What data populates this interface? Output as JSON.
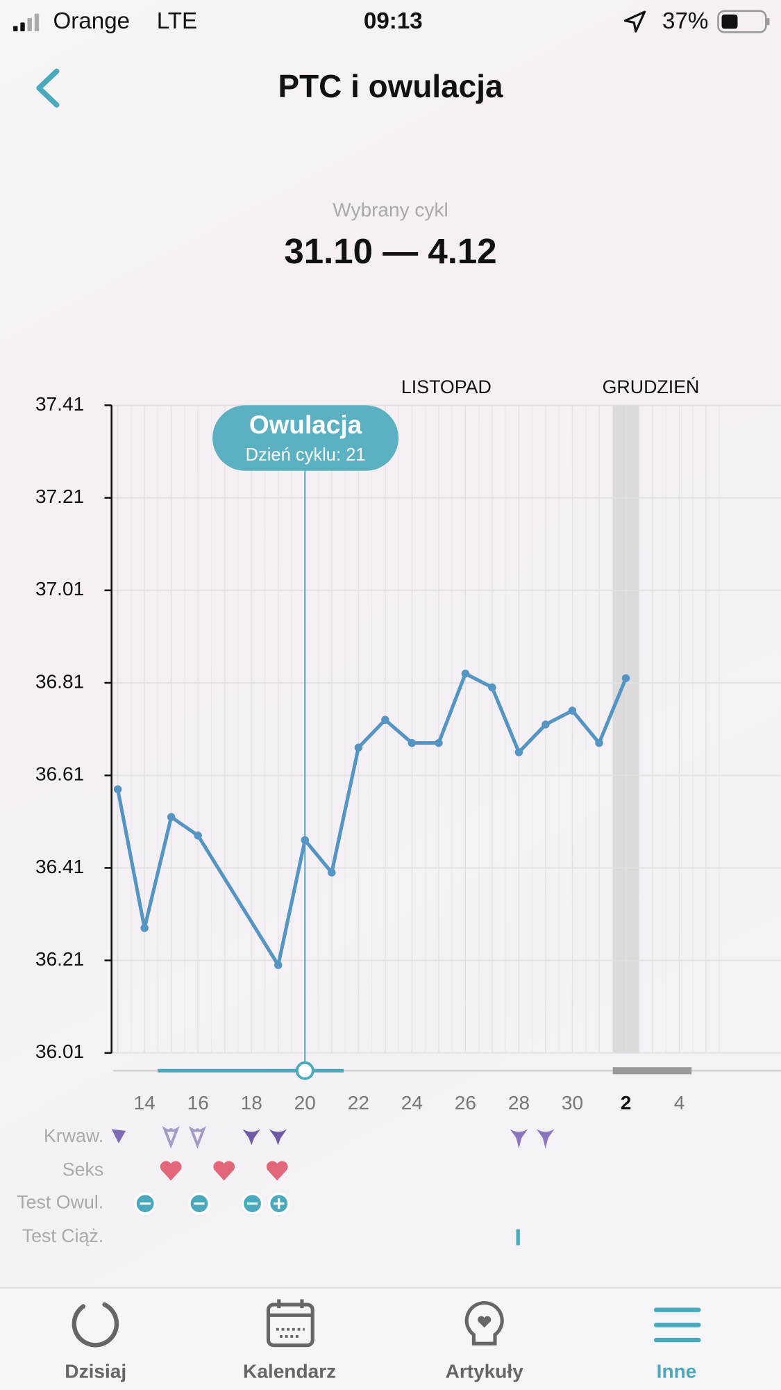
{
  "status_bar": {
    "carrier": "Orange",
    "network": "LTE",
    "time": "09:13",
    "battery": "37%"
  },
  "header": {
    "title": "PTC i owulacja"
  },
  "cycle": {
    "label": "Wybrany cykl",
    "range": "31.10 — 4.12"
  },
  "chart_data": {
    "type": "line",
    "categories": [
      null,
      "14",
      null,
      "16",
      null,
      "18",
      null,
      "20",
      null,
      "22",
      null,
      "24",
      null,
      "26",
      null,
      "28",
      null,
      "30",
      null,
      "2",
      null,
      "4",
      null
    ],
    "highlight_category": "2",
    "months": [
      "LISTOPAD",
      "GRUDZIEŃ"
    ],
    "series": [
      {
        "name": "PTC",
        "color": "#5595c4",
        "values": [
          36.58,
          36.28,
          36.52,
          36.48,
          null,
          null,
          36.2,
          36.47,
          36.4,
          36.67,
          36.73,
          36.68,
          36.68,
          36.83,
          36.8,
          36.66,
          36.72,
          36.75,
          36.68,
          36.82,
          null,
          null,
          null
        ]
      }
    ],
    "ylim": [
      36.01,
      37.41
    ],
    "yticks": [
      36.01,
      36.21,
      36.41,
      36.61,
      36.81,
      37.01,
      37.21,
      37.41
    ],
    "grid": true,
    "annotation": {
      "title": "Owulacja",
      "subtitle": "Dzień cyklu: 21"
    }
  },
  "rows": [
    "Krwaw.",
    "Seks",
    "Test Owul.",
    "Test Ciąż."
  ],
  "tabs": [
    "Dzisiaj",
    "Kalendarz",
    "Artykuły",
    "Inne"
  ]
}
